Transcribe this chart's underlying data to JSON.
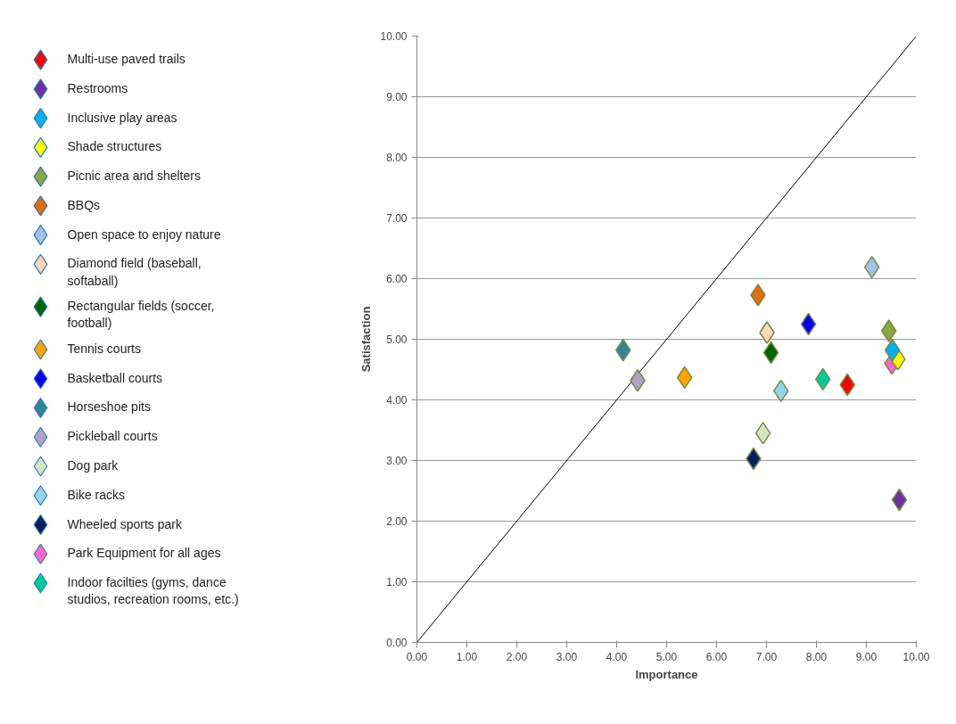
{
  "chart_data": {
    "type": "scatter",
    "xlabel": "Importance",
    "ylabel": "Satisfaction",
    "xlim": [
      0,
      10
    ],
    "ylim": [
      0,
      10
    ],
    "xticks": [
      {
        "value": 0,
        "label": "0.00"
      },
      {
        "value": 1,
        "label": "1.00"
      },
      {
        "value": 2,
        "label": "2.00"
      },
      {
        "value": 3,
        "label": "3.00"
      },
      {
        "value": 4,
        "label": "4.00"
      },
      {
        "value": 5,
        "label": "5.00"
      },
      {
        "value": 6,
        "label": "6.00"
      },
      {
        "value": 7,
        "label": "7.00"
      },
      {
        "value": 8,
        "label": "8.00"
      },
      {
        "value": 9,
        "label": "9.00"
      },
      {
        "value": 10,
        "label": "10.00"
      }
    ],
    "yticks": [
      {
        "value": 0,
        "label": "0.00"
      },
      {
        "value": 1,
        "label": "1.00"
      },
      {
        "value": 2,
        "label": "2.00"
      },
      {
        "value": 3,
        "label": "3.00"
      },
      {
        "value": 4,
        "label": "4.00"
      },
      {
        "value": 5,
        "label": "5.00"
      },
      {
        "value": 6,
        "label": "6.00"
      },
      {
        "value": 7,
        "label": "7.00"
      },
      {
        "value": 8,
        "label": "8.00"
      },
      {
        "value": 9,
        "label": "9.00"
      },
      {
        "value": 10,
        "label": "10.00"
      }
    ],
    "grid": "y",
    "legend": "left",
    "marker": "diamond",
    "series": [
      {
        "name": "Multi-use paved trails",
        "color": "#ff0000",
        "x": [
          8.62
        ],
        "values": [
          4.25
        ]
      },
      {
        "name": "Restrooms",
        "color": "#7030a0",
        "x": [
          9.66
        ],
        "values": [
          2.35
        ]
      },
      {
        "name": "Inclusive play areas",
        "color": "#00b0f0",
        "x": [
          9.52
        ],
        "values": [
          4.82
        ]
      },
      {
        "name": "Shade structures",
        "color": "#ffff00",
        "x": [
          9.63
        ],
        "values": [
          4.67
        ]
      },
      {
        "name": "Picnic area and shelters",
        "color": "#8ea640",
        "x": [
          9.45
        ],
        "values": [
          5.14
        ]
      },
      {
        "name": "BBQs",
        "color": "#e46c0a",
        "x": [
          6.83
        ],
        "values": [
          5.73
        ]
      },
      {
        "name": "Open space to enjoy nature",
        "color": "#a3c2e8",
        "x": [
          9.11
        ],
        "values": [
          6.19
        ]
      },
      {
        "name": "Diamond field (baseball, softaball)",
        "color": "#fbd9b8",
        "x": [
          7.01
        ],
        "values": [
          5.11
        ]
      },
      {
        "name": "Rectangular fields (soccer, football)",
        "color": "#006400",
        "x": [
          7.09
        ],
        "values": [
          4.78
        ]
      },
      {
        "name": "Tennis courts",
        "color": "#ffa500",
        "x": [
          5.36
        ],
        "values": [
          4.37
        ]
      },
      {
        "name": "Basketball courts",
        "color": "#0000ff",
        "x": [
          7.84
        ],
        "values": [
          5.25
        ]
      },
      {
        "name": "Horseshoe pits",
        "color": "#31849b",
        "x": [
          4.13
        ],
        "values": [
          4.82
        ]
      },
      {
        "name": "Pickleball courts",
        "color": "#b3a2c7",
        "x": [
          4.42
        ],
        "values": [
          4.32
        ]
      },
      {
        "name": "Dog park",
        "color": "#d7e4bd",
        "x": [
          6.93
        ],
        "values": [
          3.45
        ]
      },
      {
        "name": "Bike racks",
        "color": "#93d5e8",
        "x": [
          7.29
        ],
        "values": [
          4.15
        ]
      },
      {
        "name": "Wheeled sports park",
        "color": "#002060",
        "x": [
          6.74
        ],
        "values": [
          3.03
        ]
      },
      {
        "name": "Park Equipment for all ages",
        "color": "#ff66cc",
        "x": [
          9.51
        ],
        "values": [
          4.6
        ]
      },
      {
        "name": "Indoor facilties (gyms, dance studios, recreation rooms, etc.)",
        "color": "#00cc99",
        "x": [
          8.13
        ],
        "values": [
          4.34
        ]
      },
      {
        "type": "line",
        "color": "#000000",
        "x": [
          0,
          10
        ],
        "values": [
          0,
          10
        ],
        "marker": "none"
      }
    ]
  }
}
